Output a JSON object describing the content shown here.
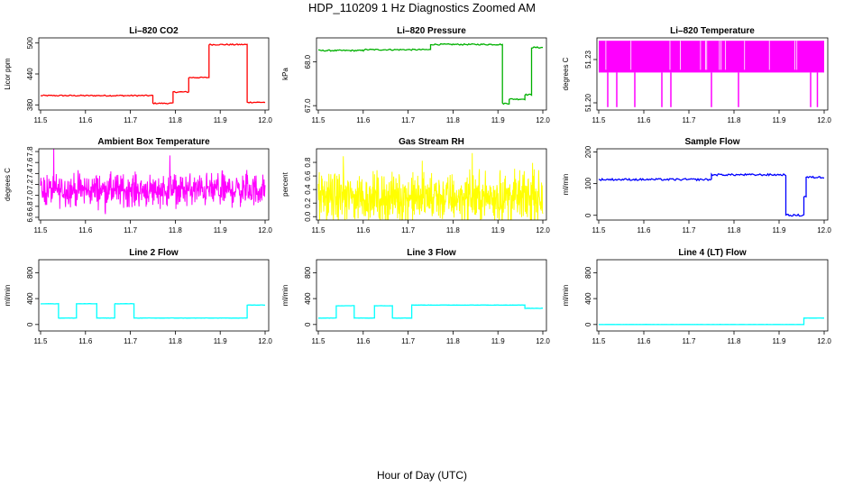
{
  "title": "HDP_110209  1 Hz Diagnostics Zoomed AM",
  "xlabel": "Hour of Day (UTC)",
  "chart_data": [
    {
      "type": "line",
      "title": "Li–820 CO2",
      "ylabel": "Licor ppm",
      "color": "#ff0000",
      "x_ticks": [
        "11.5",
        "11.6",
        "11.7",
        "11.8",
        "11.9",
        "12.0"
      ],
      "xlim": [
        11.49,
        12.01
      ],
      "y_ticks": [
        "380",
        "440",
        "500"
      ],
      "y_tick_values": [
        380,
        440,
        500
      ],
      "ylim": [
        370,
        510
      ],
      "noise": 1.2,
      "segments": [
        {
          "x0": 11.5,
          "x1": 11.75,
          "y": 398
        },
        {
          "x0": 11.75,
          "x1": 11.795,
          "y": 383
        },
        {
          "x0": 11.795,
          "x1": 11.83,
          "y": 405
        },
        {
          "x0": 11.83,
          "x1": 11.875,
          "y": 433
        },
        {
          "x0": 11.875,
          "x1": 11.96,
          "y": 497
        },
        {
          "x0": 11.96,
          "x1": 12.0,
          "y": 385
        }
      ]
    },
    {
      "type": "line",
      "title": "Li–820 Pressure",
      "ylabel": "kPa",
      "color": "#00b000",
      "x_ticks": [
        "11.5",
        "11.6",
        "11.7",
        "11.8",
        "11.9",
        "12.0"
      ],
      "xlim": [
        11.49,
        12.01
      ],
      "y_ticks": [
        "67.0",
        "68.0"
      ],
      "y_tick_values": [
        67.0,
        68.0
      ],
      "ylim": [
        66.9,
        68.55
      ],
      "noise": 0.015,
      "segments": [
        {
          "x0": 11.5,
          "x1": 11.6,
          "y": 68.26
        },
        {
          "x0": 11.6,
          "x1": 11.75,
          "y": 68.28
        },
        {
          "x0": 11.75,
          "x1": 11.91,
          "y": 68.4
        },
        {
          "x0": 11.91,
          "x1": 11.925,
          "y": 67.05
        },
        {
          "x0": 11.925,
          "x1": 11.96,
          "y": 67.15
        },
        {
          "x0": 11.96,
          "x1": 11.975,
          "y": 67.25
        },
        {
          "x0": 11.975,
          "x1": 12.0,
          "y": 68.33
        }
      ]
    },
    {
      "type": "spikes",
      "title": "Li–820 Temperature",
      "ylabel": "degrees C",
      "color": "#ff00ff",
      "x_ticks": [
        "11.5",
        "11.6",
        "11.7",
        "11.8",
        "11.9",
        "12.0"
      ],
      "xlim": [
        11.49,
        12.01
      ],
      "y_ticks": [
        "51.20",
        "51.23"
      ],
      "y_tick_values": [
        51.2,
        51.23
      ],
      "ylim": [
        51.195,
        51.245
      ],
      "base": 51.221,
      "top": 51.243,
      "dip": 51.197,
      "dips": [
        11.52,
        11.54,
        11.58,
        11.64,
        11.66,
        11.75,
        11.81,
        11.97,
        11.985
      ]
    },
    {
      "type": "noise",
      "title": "Ambient Box Temperature",
      "ylabel": "degrees C",
      "color": "#ff00ff",
      "x_ticks": [
        "11.5",
        "11.6",
        "11.7",
        "11.8",
        "11.9",
        "12.0"
      ],
      "xlim": [
        11.49,
        12.01
      ],
      "y_ticks": [
        "6.6",
        "6.8",
        "7.0",
        "7.2",
        "7.4",
        "7.6",
        "7.8"
      ],
      "y_tick_values": [
        6.6,
        6.8,
        7.0,
        7.2,
        7.4,
        7.6,
        7.8
      ],
      "ylim": [
        6.55,
        7.85
      ],
      "mean": 7.1,
      "spread": 0.18
    },
    {
      "type": "noise",
      "title": "Gas Stream RH",
      "ylabel": "percent",
      "color": "#ffff00",
      "x_ticks": [
        "11.5",
        "11.6",
        "11.7",
        "11.8",
        "11.9",
        "12.0"
      ],
      "xlim": [
        11.49,
        12.01
      ],
      "y_ticks": [
        "0.0",
        "0.2",
        "0.4",
        "0.6",
        "0.8"
      ],
      "y_tick_values": [
        0.0,
        0.2,
        0.4,
        0.6,
        0.8
      ],
      "ylim": [
        -0.05,
        1.0
      ],
      "mean": 0.28,
      "spread": 0.22
    },
    {
      "type": "line",
      "title": "Sample Flow",
      "ylabel": "ml/min",
      "color": "#0000ff",
      "x_ticks": [
        "11.5",
        "11.6",
        "11.7",
        "11.8",
        "11.9",
        "12.0"
      ],
      "xlim": [
        11.49,
        12.01
      ],
      "y_ticks": [
        "0",
        "100",
        "200"
      ],
      "y_tick_values": [
        0,
        100,
        200
      ],
      "ylim": [
        -15,
        210
      ],
      "noise": 3,
      "segments": [
        {
          "x0": 11.5,
          "x1": 11.75,
          "y": 113
        },
        {
          "x0": 11.75,
          "x1": 11.915,
          "y": 128
        },
        {
          "x0": 11.915,
          "x1": 11.955,
          "y": 0
        },
        {
          "x0": 11.955,
          "x1": 11.96,
          "y": 60
        },
        {
          "x0": 11.96,
          "x1": 12.0,
          "y": 120
        }
      ]
    },
    {
      "type": "line",
      "title": "Line 2 Flow",
      "ylabel": "ml/min",
      "color": "#00ffff",
      "x_ticks": [
        "11.5",
        "11.6",
        "11.7",
        "11.8",
        "11.9",
        "12.0"
      ],
      "xlim": [
        11.49,
        12.01
      ],
      "y_ticks": [
        "0",
        "400",
        "800"
      ],
      "y_tick_values": [
        0,
        400,
        800
      ],
      "ylim": [
        -100,
        1000
      ],
      "noise": 2,
      "segments": [
        {
          "x0": 11.5,
          "x1": 11.54,
          "y": 320
        },
        {
          "x0": 11.54,
          "x1": 11.58,
          "y": 100
        },
        {
          "x0": 11.58,
          "x1": 11.625,
          "y": 320
        },
        {
          "x0": 11.625,
          "x1": 11.665,
          "y": 100
        },
        {
          "x0": 11.665,
          "x1": 11.708,
          "y": 320
        },
        {
          "x0": 11.708,
          "x1": 11.96,
          "y": 100
        },
        {
          "x0": 11.96,
          "x1": 12.0,
          "y": 300
        }
      ]
    },
    {
      "type": "line",
      "title": "Line 3 Flow",
      "ylabel": "ml/min",
      "color": "#00ffff",
      "x_ticks": [
        "11.5",
        "11.6",
        "11.7",
        "11.8",
        "11.9",
        "12.0"
      ],
      "xlim": [
        11.49,
        12.01
      ],
      "y_ticks": [
        "0",
        "400",
        "800"
      ],
      "y_tick_values": [
        0,
        400,
        800
      ],
      "ylim": [
        -100,
        1000
      ],
      "noise": 2,
      "segments": [
        {
          "x0": 11.5,
          "x1": 11.54,
          "y": 100
        },
        {
          "x0": 11.54,
          "x1": 11.58,
          "y": 290
        },
        {
          "x0": 11.58,
          "x1": 11.625,
          "y": 100
        },
        {
          "x0": 11.625,
          "x1": 11.665,
          "y": 290
        },
        {
          "x0": 11.665,
          "x1": 11.708,
          "y": 100
        },
        {
          "x0": 11.708,
          "x1": 11.96,
          "y": 300
        },
        {
          "x0": 11.96,
          "x1": 12.0,
          "y": 250
        }
      ]
    },
    {
      "type": "line",
      "title": "Line 4 (LT) Flow",
      "ylabel": "ml/min",
      "color": "#00ffff",
      "x_ticks": [
        "11.5",
        "11.6",
        "11.7",
        "11.8",
        "11.9",
        "12.0"
      ],
      "xlim": [
        11.49,
        12.01
      ],
      "y_ticks": [
        "0",
        "400",
        "800"
      ],
      "y_tick_values": [
        0,
        400,
        800
      ],
      "ylim": [
        -100,
        1000
      ],
      "noise": 1,
      "segments": [
        {
          "x0": 11.5,
          "x1": 11.955,
          "y": 0
        },
        {
          "x0": 11.955,
          "x1": 12.0,
          "y": 100
        }
      ]
    }
  ]
}
